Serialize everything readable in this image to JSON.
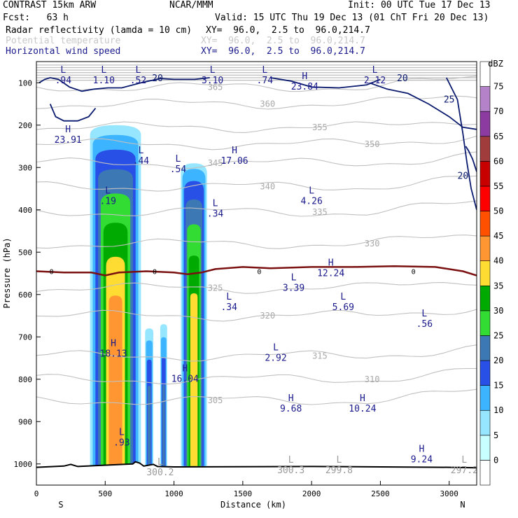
{
  "header": {
    "model": "CONTRAST 15km ARW",
    "center": "NCAR/MMM",
    "init": "Init: 00 UTC Tue 17 Dec 13",
    "fcst": "Fcst:   63 h",
    "valid": "Valid: 15 UTC Thu 19 Dec 13 (01 ChT Fri 20 Dec 13)",
    "field1": "Radar reflectivity (lamda = 10 cm)",
    "field1_xy": "XY=  96.0,  2.5 to  96.0,214.7",
    "field2": "Potential temperature",
    "field2_xy": "XY=  96.0,  2.5 to  96.0,214.7",
    "field3": "Horizontal wind speed",
    "field3_xy": "XY=  96.0,  2.5 to  96.0,214.7"
  },
  "colors": {
    "theta": "#c0c0c0",
    "wind": "#0a1a6e",
    "freezing": "#7a1010",
    "terrain": "#000000"
  },
  "chart_data": {
    "type": "heatmap",
    "xlabel": "Distance (km)",
    "ylabel": "Pressure (hPa)",
    "xlim": [
      0,
      3200
    ],
    "ylim": [
      1050,
      50
    ],
    "x_ticks": [
      "0",
      "500",
      "1000",
      "1500",
      "2000",
      "2500",
      "3000"
    ],
    "y_ticks": [
      "100",
      "200",
      "300",
      "400",
      "500",
      "600",
      "700",
      "800",
      "900",
      "1000"
    ],
    "x_end_labels": {
      "left": "S",
      "right": "N"
    },
    "colorbar": {
      "unit": "dBZ",
      "levels": [
        "0",
        "5",
        "10",
        "15",
        "20",
        "25",
        "30",
        "35",
        "40",
        "45",
        "50",
        "55",
        "60",
        "65",
        "70",
        "75"
      ],
      "colors": [
        "#ffffff",
        "#c8ffff",
        "#96e6ff",
        "#3cb4ff",
        "#2850e6",
        "#3c78b4",
        "#32dc32",
        "#00aa00",
        "#ffdc32",
        "#ff9632",
        "#ff5000",
        "#ff0000",
        "#c80000",
        "#a03c3c",
        "#8c3ca0",
        "#b482c8",
        "#ffffff"
      ]
    },
    "reflectivity_columns": [
      {
        "x0": 390,
        "x1": 760,
        "top": 200,
        "core_top": 340,
        "max_dbz": 40
      },
      {
        "x0": 790,
        "x1": 850,
        "top": 680,
        "core_top": 760,
        "max_dbz": 20
      },
      {
        "x0": 900,
        "x1": 950,
        "top": 670,
        "core_top": 760,
        "max_dbz": 20
      },
      {
        "x0": 1050,
        "x1": 1240,
        "top": 290,
        "core_top": 330,
        "max_dbz": 35
      }
    ],
    "theta_labels": [
      "365",
      "360",
      "355",
      "350",
      "345",
      "340",
      "335",
      "330",
      "325",
      "320",
      "315",
      "310",
      "305"
    ],
    "wind_labels": [
      "20",
      "25"
    ],
    "freezing_level_label": "0",
    "extrema": [
      {
        "type": "L",
        "value": ".94",
        "x": 195,
        "p": 80
      },
      {
        "type": "L",
        "value": "1.10",
        "x": 490,
        "p": 80
      },
      {
        "type": "L",
        "value": ".52",
        "x": 740,
        "p": 80
      },
      {
        "type": "L",
        "value": "3.10",
        "x": 1280,
        "p": 80
      },
      {
        "type": "L",
        "value": ".74",
        "x": 1660,
        "p": 80
      },
      {
        "type": "H",
        "value": "23.84",
        "x": 1950,
        "p": 95
      },
      {
        "type": "L",
        "value": "2.12",
        "x": 2460,
        "p": 80
      },
      {
        "type": "H",
        "value": "23.91",
        "x": 230,
        "p": 220
      },
      {
        "type": "L",
        "value": ".44",
        "x": 760,
        "p": 270
      },
      {
        "type": "L",
        "value": ".54",
        "x": 1030,
        "p": 290
      },
      {
        "type": "H",
        "value": "17.06",
        "x": 1440,
        "p": 270
      },
      {
        "type": "L",
        "value": ".19",
        "x": 520,
        "p": 365
      },
      {
        "type": "L",
        "value": ".34",
        "x": 1300,
        "p": 395
      },
      {
        "type": "L",
        "value": "4.26",
        "x": 2000,
        "p": 365
      },
      {
        "type": "H",
        "value": "12.24",
        "x": 2140,
        "p": 535
      },
      {
        "type": "L",
        "value": "3.39",
        "x": 1870,
        "p": 570
      },
      {
        "type": "L",
        "value": ".34",
        "x": 1400,
        "p": 615
      },
      {
        "type": "L",
        "value": "5.69",
        "x": 2230,
        "p": 615
      },
      {
        "type": "L",
        "value": ".56",
        "x": 2820,
        "p": 655
      },
      {
        "type": "H",
        "value": "18.13",
        "x": 560,
        "p": 725
      },
      {
        "type": "L",
        "value": "2.92",
        "x": 1740,
        "p": 735
      },
      {
        "type": "H",
        "value": "16.04",
        "x": 1080,
        "p": 785
      },
      {
        "type": "H",
        "value": "9.68",
        "x": 1850,
        "p": 855
      },
      {
        "type": "H",
        "value": "10.24",
        "x": 2370,
        "p": 855
      },
      {
        "type": "L",
        "value": ".93",
        "x": 620,
        "p": 935
      },
      {
        "type": "H",
        "value": "9.24",
        "x": 2800,
        "p": 975
      },
      {
        "type": "L",
        "value": "300.3",
        "x": 1850,
        "p": 1000
      },
      {
        "type": "L",
        "value": "299.8",
        "x": 2200,
        "p": 1000
      },
      {
        "type": "L",
        "value": "297.2",
        "x": 3110,
        "p": 1000
      },
      {
        "type": "L",
        "value": "300.2",
        "x": 900,
        "p": 1005
      }
    ]
  }
}
